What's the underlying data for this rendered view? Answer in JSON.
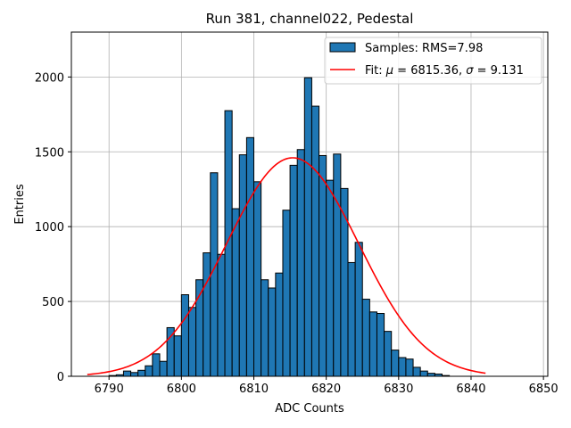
{
  "chart_data": {
    "type": "bar",
    "title": "Run 381, channel022, Pedestal",
    "xlabel": "ADC Counts",
    "ylabel": "Entries",
    "xlim": [
      6784.8,
      6850.6
    ],
    "ylim": [
      0,
      2300
    ],
    "xticks": [
      6790,
      6800,
      6810,
      6820,
      6830,
      6840,
      6850
    ],
    "yticks": [
      0,
      500,
      1000,
      1500,
      2000
    ],
    "grid": true,
    "legend_position": "top-right",
    "colors": {
      "bars": "#1f77b4",
      "bar_edge": "#000000",
      "fit": "#ff0000",
      "grid": "#b0b0b0"
    },
    "series": [
      {
        "name": "Samples: RMS=7.98",
        "type": "histogram",
        "bin_width": 1,
        "bin_left_edges": [
          6787,
          6788,
          6789,
          6790,
          6791,
          6792,
          6793,
          6794,
          6795,
          6796,
          6797,
          6798,
          6799,
          6800,
          6801,
          6802,
          6803,
          6804,
          6805,
          6806,
          6807,
          6808,
          6809,
          6810,
          6811,
          6812,
          6813,
          6814,
          6815,
          6816,
          6817,
          6818,
          6819,
          6820,
          6821,
          6822,
          6823,
          6824,
          6825,
          6826,
          6827,
          6828,
          6829,
          6830,
          6831,
          6832,
          6833,
          6834,
          6835,
          6836,
          6837,
          6838,
          6839,
          6840,
          6841
        ],
        "values": [
          0,
          0,
          0,
          5,
          10,
          35,
          25,
          40,
          70,
          150,
          100,
          325,
          270,
          545,
          460,
          645,
          825,
          1360,
          815,
          1775,
          1120,
          1480,
          1595,
          1300,
          645,
          590,
          690,
          1110,
          1410,
          1515,
          1995,
          1805,
          1475,
          1310,
          1485,
          1255,
          760,
          895,
          515,
          430,
          420,
          300,
          175,
          125,
          115,
          60,
          35,
          20,
          15,
          5,
          0,
          0,
          0,
          0,
          0
        ]
      },
      {
        "name": "Fit: μ = 6815.36, σ = 9.131",
        "type": "line",
        "mu": 6815.36,
        "sigma": 9.131,
        "amplitude": 1460,
        "x_range": [
          6787,
          6842
        ]
      }
    ],
    "legend_labels": {
      "samples": "Samples: RMS=7.98",
      "fit_prefix": "Fit: ",
      "mu_symbol": "μ",
      "mu_text": " = 6815.36, ",
      "sigma_symbol": "σ",
      "sigma_text": " = 9.131"
    }
  }
}
